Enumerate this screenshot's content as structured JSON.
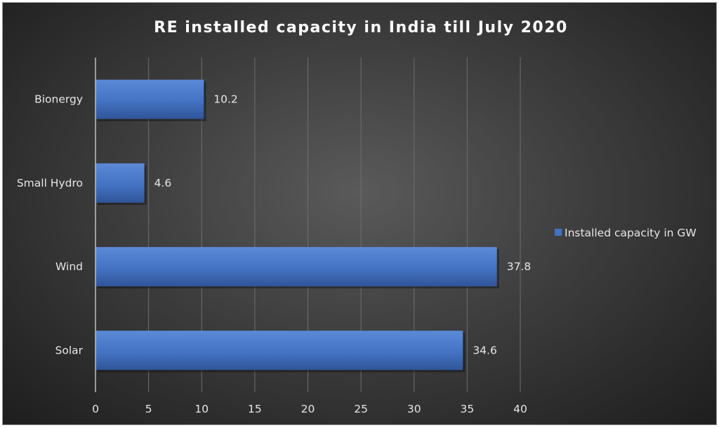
{
  "chart_data": {
    "type": "bar",
    "orientation": "horizontal",
    "title": "RE installed capacity in India till July 2020",
    "categories": [
      "Bionergy",
      "Small Hydro",
      "Wind",
      "Solar"
    ],
    "series": [
      {
        "name": "Installed capacity in GW",
        "values": [
          10.2,
          4.6,
          37.8,
          34.6
        ]
      }
    ],
    "data_labels": [
      "10.2",
      "4.6",
      "37.8",
      "34.6"
    ],
    "xlim": [
      0,
      40
    ],
    "x_ticks": [
      "0",
      "5",
      "10",
      "15",
      "20",
      "25",
      "30",
      "35",
      "40"
    ],
    "xlabel": "",
    "ylabel": "",
    "grid": "vertical",
    "legend_position": "right",
    "colors": {
      "bar": "#4472c4",
      "bar_light": "#5b8ad8",
      "bar_dark": "#2f5597",
      "grid": "#6e6e6e",
      "axis": "#bfbfbf",
      "text": "#e6e6e6"
    }
  }
}
